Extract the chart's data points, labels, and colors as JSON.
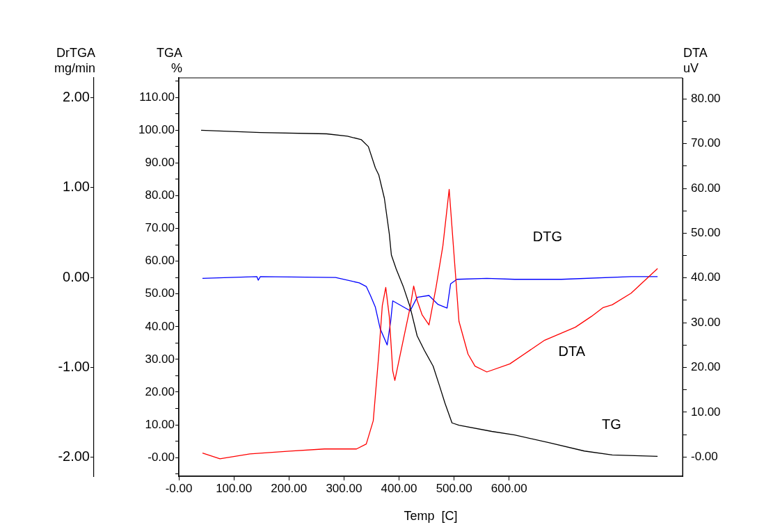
{
  "chart_data": {
    "type": "line",
    "xlabel": "Temp  [C]",
    "ylabel": "TGA\n%",
    "y2label": "DTA\nuV",
    "y3label": "DrTGA\nmg/min",
    "legend": false,
    "grid": false,
    "marker": "none",
    "line_style": "solid",
    "xlim": [
      0,
      915
    ],
    "xticks": [
      {
        "value": 0,
        "label": "-0.00"
      },
      {
        "value": 100,
        "label": "100.00"
      },
      {
        "value": 200,
        "label": "200.00"
      },
      {
        "value": 300,
        "label": "300.00"
      },
      {
        "value": 400,
        "label": "400.00"
      },
      {
        "value": 500,
        "label": "500.00"
      },
      {
        "value": 600,
        "label": "600.00"
      }
    ],
    "ylim": [
      -5.7,
      116
    ],
    "yticks": [
      {
        "value": -5,
        "label": null
      },
      {
        "value": 0,
        "label": "-0.00"
      },
      {
        "value": 5,
        "label": null
      },
      {
        "value": 10,
        "label": "10.00"
      },
      {
        "value": 15,
        "label": null
      },
      {
        "value": 20,
        "label": "20.00"
      },
      {
        "value": 25,
        "label": null
      },
      {
        "value": 30,
        "label": "30.00"
      },
      {
        "value": 35,
        "label": null
      },
      {
        "value": 40,
        "label": "40.00"
      },
      {
        "value": 45,
        "label": null
      },
      {
        "value": 50,
        "label": "50.00"
      },
      {
        "value": 55,
        "label": null
      },
      {
        "value": 60,
        "label": "60.00"
      },
      {
        "value": 65,
        "label": null
      },
      {
        "value": 70,
        "label": "70.00"
      },
      {
        "value": 75,
        "label": null
      },
      {
        "value": 80,
        "label": "80.00"
      },
      {
        "value": 85,
        "label": null
      },
      {
        "value": 90,
        "label": "90.00"
      },
      {
        "value": 95,
        "label": null
      },
      {
        "value": 100,
        "label": "100.00"
      },
      {
        "value": 105,
        "label": null
      },
      {
        "value": 110,
        "label": "110.00"
      },
      {
        "value": 115,
        "label": null
      }
    ],
    "y2lim": [
      -4.3,
      84.7
    ],
    "y2ticks": [
      {
        "value": 0,
        "label": "-0.00"
      },
      {
        "value": 5,
        "label": null
      },
      {
        "value": 10,
        "label": "10.00"
      },
      {
        "value": 15,
        "label": null
      },
      {
        "value": 20,
        "label": "20.00"
      },
      {
        "value": 25,
        "label": null
      },
      {
        "value": 30,
        "label": "30.00"
      },
      {
        "value": 35,
        "label": null
      },
      {
        "value": 40,
        "label": "40.00"
      },
      {
        "value": 45,
        "label": null
      },
      {
        "value": 50,
        "label": "50.00"
      },
      {
        "value": 55,
        "label": null
      },
      {
        "value": 60,
        "label": "60.00"
      },
      {
        "value": 65,
        "label": null
      },
      {
        "value": 70,
        "label": "70.00"
      },
      {
        "value": 75,
        "label": null
      },
      {
        "value": 80,
        "label": "80.00"
      }
    ],
    "y3lim": [
      -2.21,
      2.22
    ],
    "y3ticks": [
      {
        "value": -2,
        "label": "-2.00"
      },
      {
        "value": -1,
        "label": "-1.00"
      },
      {
        "value": 0,
        "label": "0.00"
      },
      {
        "value": 1,
        "label": "1.00"
      },
      {
        "value": 2,
        "label": "2.00"
      }
    ],
    "series": [
      {
        "name": "TG",
        "color": "#000000",
        "axis": "y",
        "x": [
          40.5,
          148.1,
          268.4,
          306.3,
          331.6,
          344.3,
          357,
          363.3,
          373.4,
          382.3,
          386.1,
          394.9,
          407.6,
          420.3,
          432.9,
          445.6,
          462,
          473.4,
          483.5,
          496.2,
          508.9,
          568.4,
          610.1,
          673.4,
          736.7,
          787.3,
          869.6
        ],
        "values": [
          100.0,
          99.3,
          98.9,
          98.2,
          97.1,
          95.0,
          88.5,
          86.3,
          79.2,
          68.4,
          61.9,
          57.6,
          52.3,
          45.9,
          37.2,
          32.9,
          27.9,
          22.0,
          16.6,
          10.6,
          9.9,
          8.0,
          6.9,
          4.5,
          2.0,
          0.8,
          0.4
        ]
      },
      {
        "name": "DTA",
        "color": "#ff0000",
        "axis": "y2",
        "x": [
          43.0,
          74.7,
          129.1,
          201.3,
          264.6,
          322.8,
          340.5,
          353.2,
          363.3,
          369.6,
          375.9,
          382.3,
          388.6,
          392.4,
          407.6,
          420.3,
          426.6,
          432.9,
          441.8,
          454.4,
          467.1,
          479.7,
          491.1,
          498.7,
          508.9,
          525.3,
          538.0,
          559.5,
          601.3,
          664.6,
          720.3,
          749.4,
          770.9,
          787.3,
          821.5,
          869.6
        ],
        "values": [
          0.9,
          -0.4,
          0.7,
          1.3,
          1.8,
          1.8,
          2.9,
          8.1,
          23.0,
          33.8,
          37.9,
          31.4,
          19.2,
          17.1,
          26.1,
          33.5,
          38.2,
          35.0,
          31.8,
          29.5,
          37.8,
          47.2,
          59.8,
          47.2,
          30.3,
          23.0,
          20.3,
          19.0,
          20.8,
          26.1,
          29.0,
          31.4,
          33.4,
          34.0,
          36.6,
          42.1
        ]
      },
      {
        "name": "DTG",
        "color": "#0000ff",
        "axis": "y3",
        "x": [
          43.0,
          141.8,
          144.3,
          148.1,
          284.8,
          327.8,
          340.5,
          348.1,
          357.0,
          365.8,
          378.5,
          384.8,
          388.6,
          420.3,
          432.9,
          454.4,
          470.9,
          487.3,
          493.7,
          505.1,
          559.5,
          610.1,
          694.9,
          821.5,
          869.6
        ],
        "values": [
          -0.01,
          0.01,
          -0.03,
          0.01,
          0.0,
          -0.06,
          -0.1,
          -0.2,
          -0.33,
          -0.57,
          -0.75,
          -0.49,
          -0.26,
          -0.37,
          -0.22,
          -0.2,
          -0.3,
          -0.34,
          -0.07,
          -0.02,
          -0.01,
          -0.02,
          -0.02,
          0.01,
          0.01
        ]
      }
    ]
  }
}
